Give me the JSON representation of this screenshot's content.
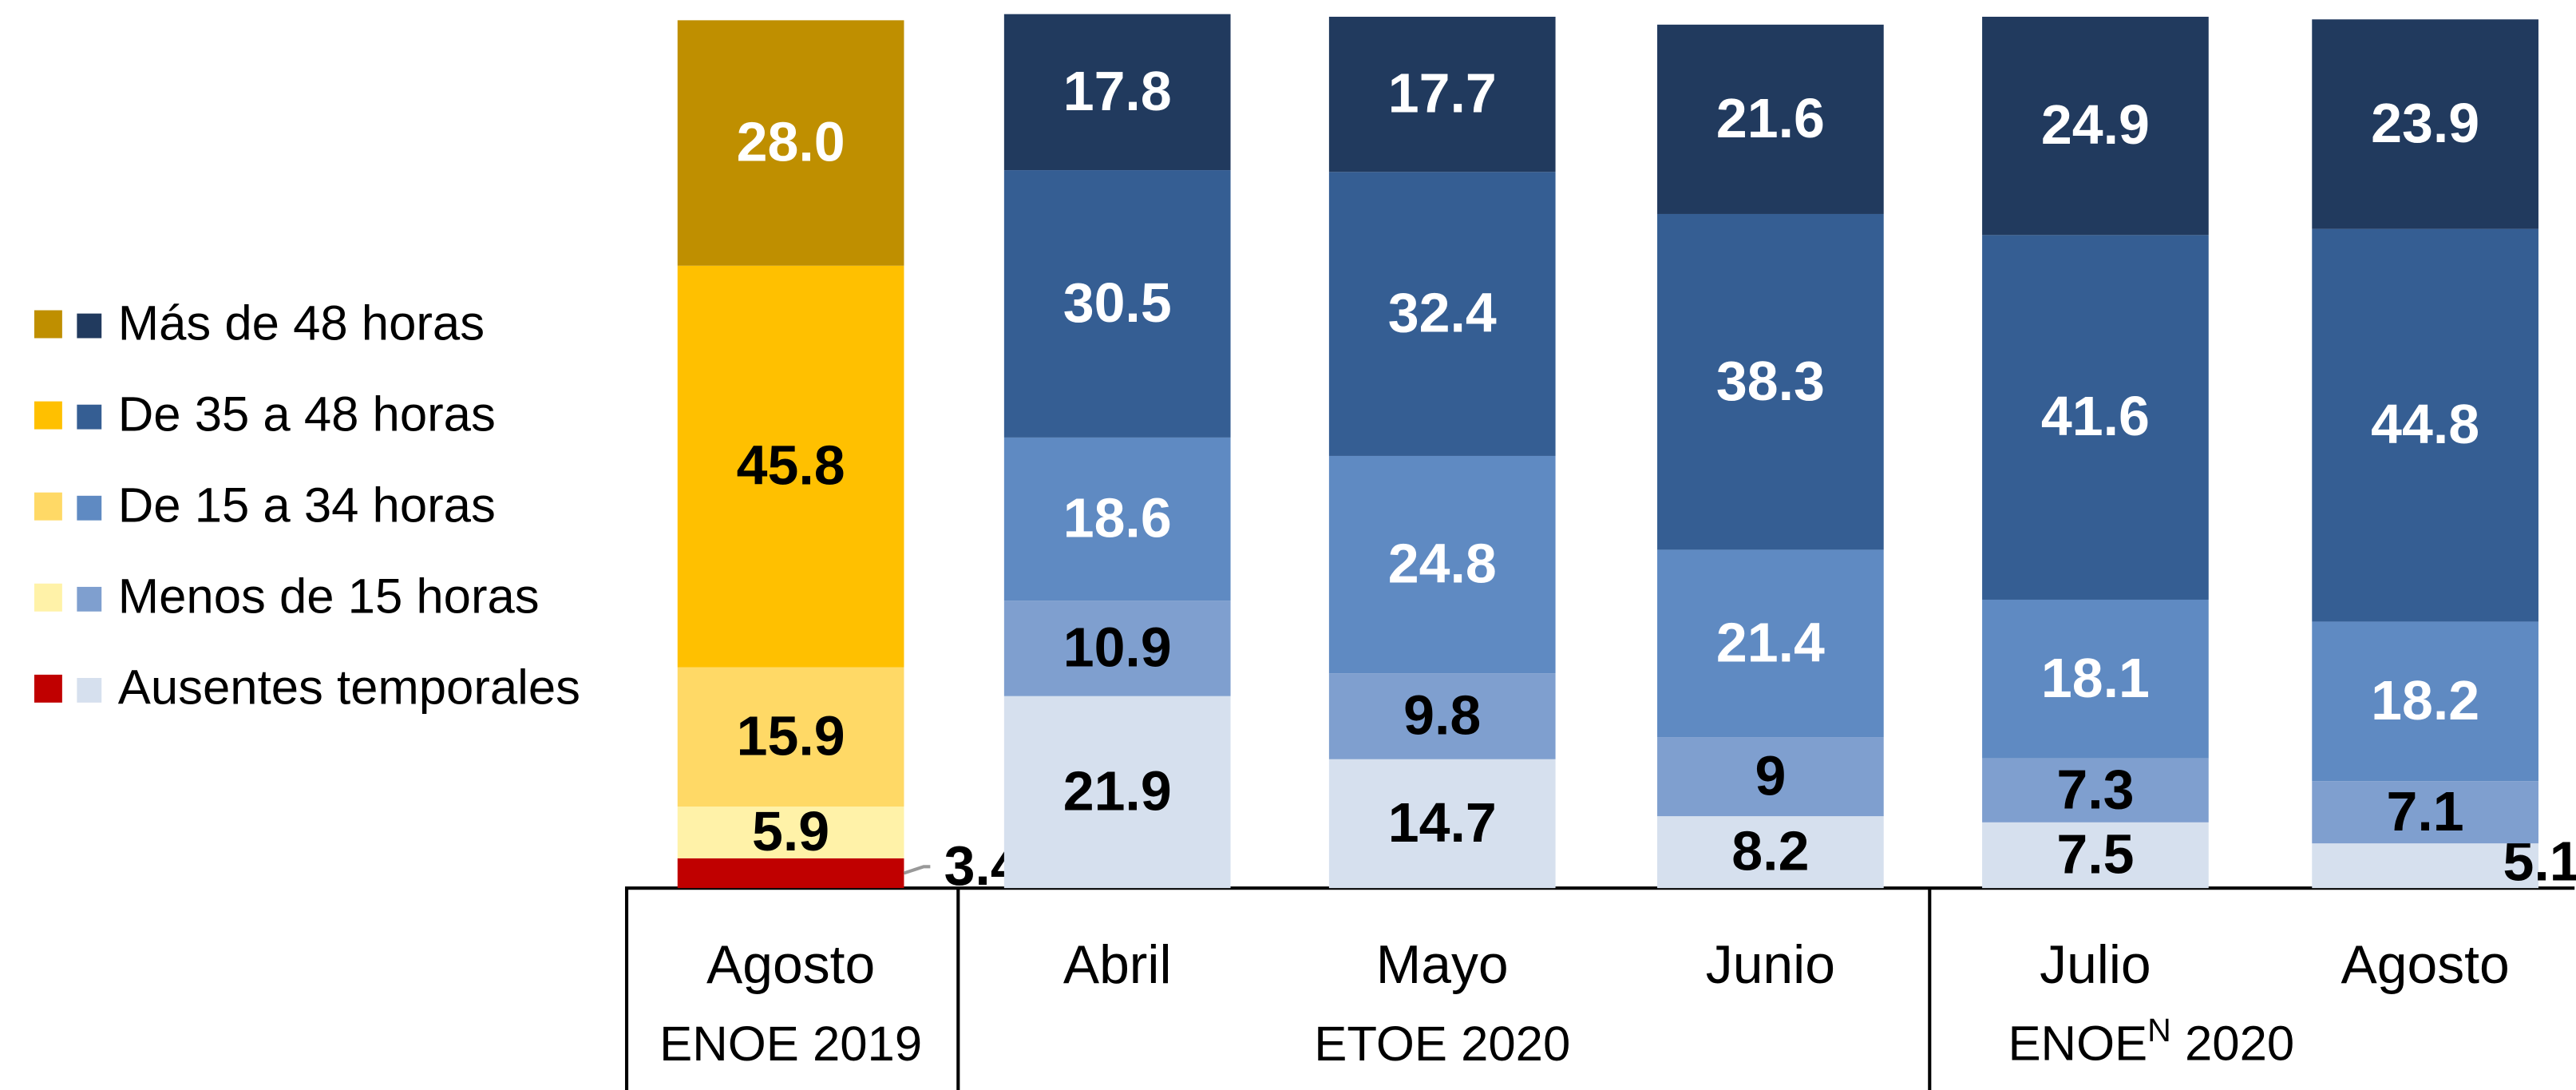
{
  "chart_data": {
    "type": "stacked_bar",
    "categories": [
      "Agosto",
      "Abril",
      "Mayo",
      "Junio",
      "Julio",
      "Agosto"
    ],
    "groups": [
      {
        "label": "ENOE 2019"
      },
      {
        "label": "ETOE 2020"
      },
      {
        "label": "ENOE",
        "superscript": "N",
        "suffix": " 2020"
      }
    ],
    "series": [
      {
        "name": "Ausentes temporales",
        "colors": [
          "#c00000",
          "#d6e0ee",
          "#d6e0ee",
          "#d6e0ee",
          "#d6e0ee",
          "#d6e0ee"
        ],
        "values": [
          3.4,
          21.9,
          14.7,
          8.2,
          7.5,
          5.1
        ]
      },
      {
        "name": "Menos de 15 horas",
        "colors": [
          "#fff2a8",
          "#7f9fcf",
          "#7f9fcf",
          "#7f9fcf",
          "#7f9fcf",
          "#7f9fcf"
        ],
        "values": [
          5.9,
          10.9,
          9.8,
          9.0,
          7.3,
          7.1
        ]
      },
      {
        "name": "De 15 a 34 horas",
        "colors": [
          "#ffd966",
          "#5f8ac2",
          "#5f8ac2",
          "#5f8ac2",
          "#5f8ac2",
          "#5f8ac2"
        ],
        "values": [
          15.9,
          18.6,
          24.8,
          21.4,
          18.1,
          18.2
        ]
      },
      {
        "name": "De 35 a 48 horas",
        "colors": [
          "#ffc000",
          "#355e93",
          "#355e93",
          "#355e93",
          "#355e93",
          "#355e93"
        ],
        "values": [
          45.8,
          30.5,
          32.4,
          38.3,
          41.6,
          44.8
        ]
      },
      {
        "name": "Más de 48 horas",
        "colors": [
          "#bf8f00",
          "#213a5e",
          "#213a5e",
          "#213a5e",
          "#213a5e",
          "#213a5e"
        ],
        "values": [
          28,
          17.8,
          17.7,
          21.6,
          24.9,
          23.9
        ],
        "value_labels": [
          "28.0",
          "17.8",
          "17.7",
          "21.6",
          "24.9",
          "23.9"
        ]
      }
    ]
  }
}
